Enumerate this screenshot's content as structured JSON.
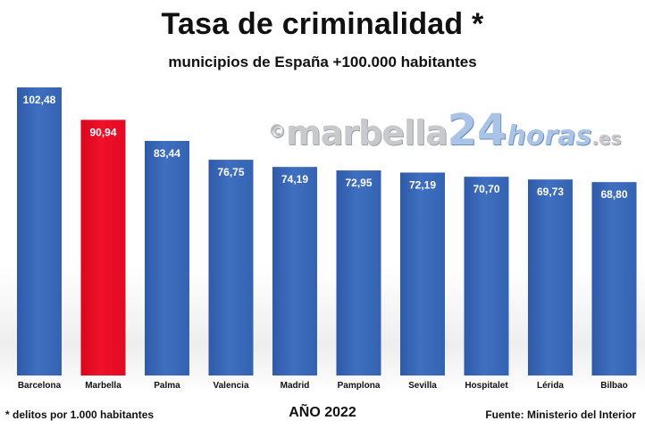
{
  "title": "Tasa de criminalidad *",
  "subtitle": "municipios de España +100.000 habitantes",
  "watermark": {
    "copyright": "©",
    "main": "marbella",
    "number": "24",
    "sub": "horas",
    "domain": ".es"
  },
  "footnote": "* delitos por 1.000 habitantes",
  "year_label": "AÑO 2022",
  "source": "Fuente: Ministerio del Interior",
  "colors": {
    "bar": "#3f6fc0",
    "highlight": "#f0102a",
    "highlight_label": "#e8101e"
  },
  "chart_data": {
    "type": "bar",
    "title": "Tasa de criminalidad *",
    "subtitle": "municipios de España +100.000 habitantes",
    "categories": [
      "Barcelona",
      "Marbella",
      "Palma",
      "Valencia",
      "Madrid",
      "Pamplona",
      "Sevilla",
      "Hospitalet",
      "Lérida",
      "Bilbao"
    ],
    "values": [
      102.48,
      90.94,
      83.44,
      76.75,
      74.19,
      72.95,
      72.19,
      70.7,
      69.73,
      68.8
    ],
    "value_labels": [
      "102,48",
      "90,94",
      "83,44",
      "76,75",
      "74,19",
      "72,95",
      "72,19",
      "70,70",
      "69,73",
      "68,80"
    ],
    "highlight": "Marbella",
    "xlabel": "",
    "ylabel": "",
    "grid": false,
    "legend": "none"
  }
}
